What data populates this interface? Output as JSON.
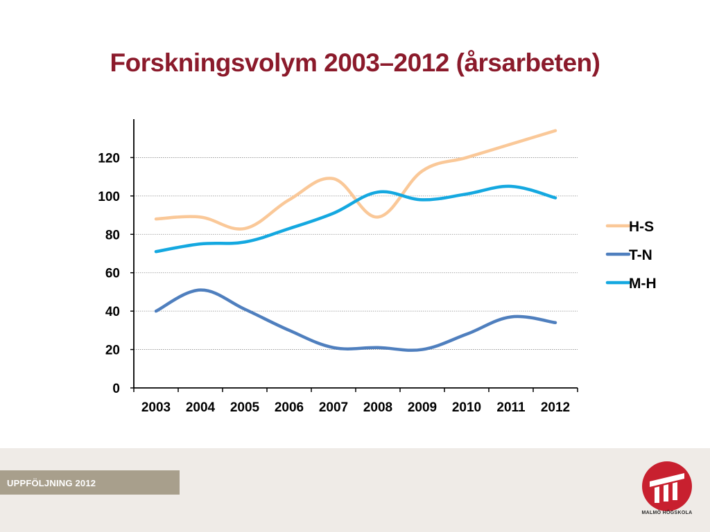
{
  "slide": {
    "title": "Forskningsvolym 2003–2012 (årsarbeten)",
    "footer_label": "UPPFÖLJNING  2012",
    "logo_text": "MALMÖ HÖGSKOLA"
  },
  "colors": {
    "title": "#8b1a2b",
    "footer_band": "#a89f8c",
    "logo": "#c8202f",
    "grid": "#8a8a8a",
    "axis": "#000000"
  },
  "chart_data": {
    "type": "line",
    "title": "Forskningsvolym 2003–2012 (årsarbeten)",
    "xlabel": "",
    "ylabel": "",
    "x": [
      "2003",
      "2004",
      "2005",
      "2006",
      "2007",
      "2008",
      "2009",
      "2010",
      "2011",
      "2012"
    ],
    "ylim": [
      0,
      140
    ],
    "yticks": [
      0,
      20,
      40,
      60,
      80,
      100,
      120
    ],
    "grid": true,
    "legend_position": "right",
    "smooth": true,
    "series": [
      {
        "name": "H-S",
        "color": "#fac898",
        "values": [
          88,
          89,
          83,
          98,
          109,
          89,
          113,
          120,
          127,
          134
        ]
      },
      {
        "name": "T-N",
        "color": "#4f7fbe",
        "values": [
          40,
          51,
          41,
          30,
          21,
          21,
          20,
          28,
          37,
          34
        ]
      },
      {
        "name": "M-H",
        "color": "#14a8e0",
        "values": [
          71,
          75,
          76,
          83,
          91,
          102,
          98,
          101,
          105,
          99
        ]
      }
    ]
  }
}
